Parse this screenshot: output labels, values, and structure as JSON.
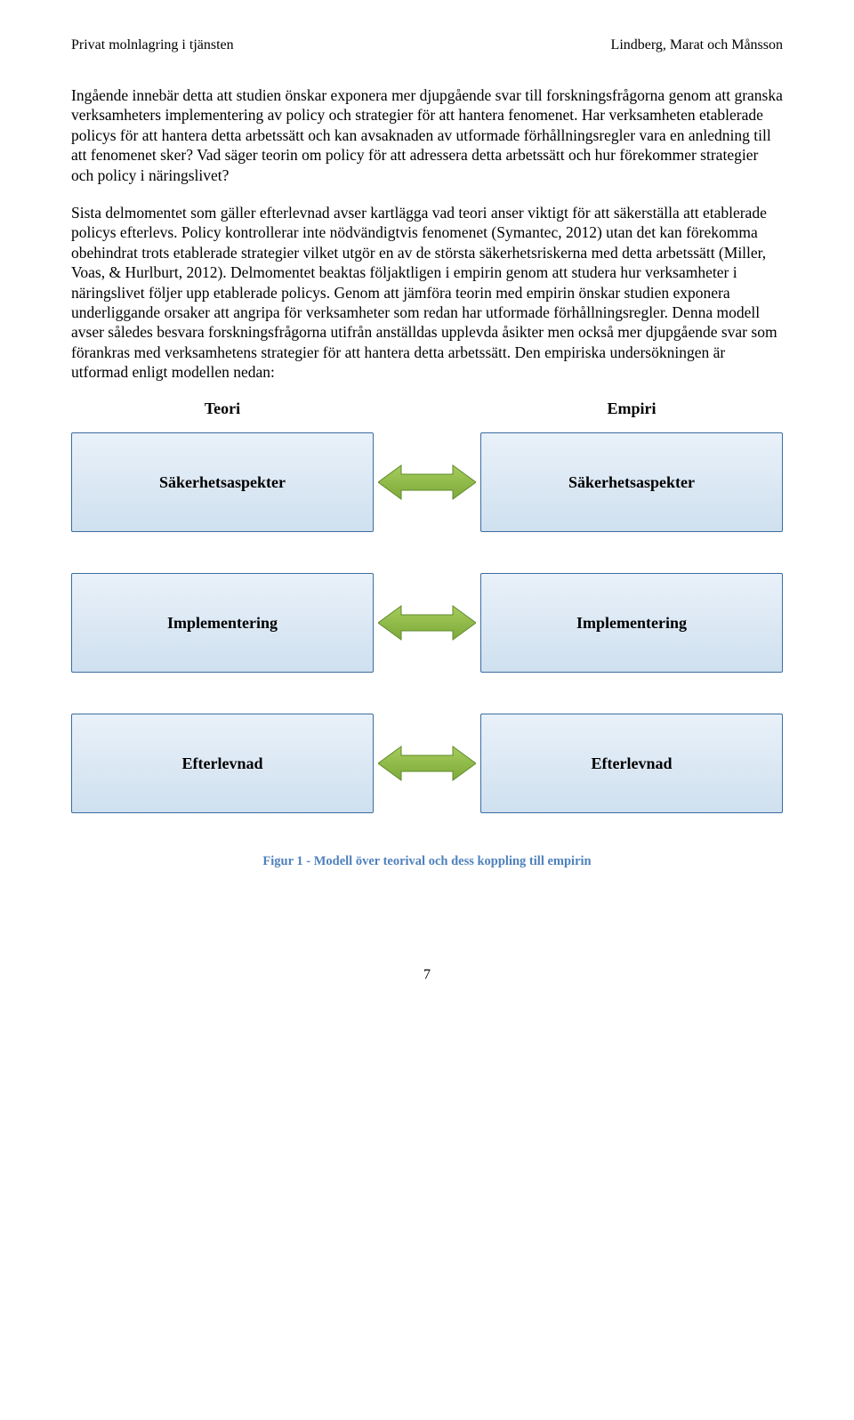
{
  "header": {
    "left": "Privat molnlagring i tjänsten",
    "right": "Lindberg, Marat och Månsson"
  },
  "paragraphs": {
    "p1": "Ingående innebär detta att studien önskar exponera mer djupgående svar till forskningsfrågorna genom att granska verksamheters implementering av policy och strategier för att hantera fenomenet. Har verksamheten etablerade policys för att hantera detta arbetssätt och kan avsaknaden av utformade förhållningsregler vara en anledning till att fenomenet sker? Vad säger teorin om policy för att adressera detta arbetssätt och hur förekommer strategier och policy i näringslivet?",
    "p2": "Sista delmomentet som gäller efterlevnad avser kartlägga vad teori anser viktigt för att säkerställa att etablerade policys efterlevs. Policy kontrollerar inte nödvändigtvis fenomenet (Symantec, 2012) utan det kan förekomma obehindrat trots etablerade strategier vilket utgör en av de största säkerhetsriskerna med detta arbetssätt (Miller, Voas, & Hurlburt, 2012). Delmomentet beaktas följaktligen i empirin genom att studera hur verksamheter i näringslivet följer upp etablerade policys. Genom att jämföra teorin med empirin önskar studien exponera underliggande orsaker att angripa för verksamheter som redan har utformade förhållningsregler. Denna modell avser således besvara forskningsfrågorna utifrån anställdas upplevda åsikter men också mer djupgående svar som förankras med verksamhetens strategier för att hantera detta arbetssätt. Den empiriska undersökningen är utformad enligt modellen nedan:"
  },
  "diagram": {
    "columns": {
      "left": "Teori",
      "right": "Empiri"
    },
    "rows": [
      {
        "left": "Säkerhetsaspekter",
        "right": "Säkerhetsaspekter"
      },
      {
        "left": "Implementering",
        "right": "Implementering"
      },
      {
        "left": "Efterlevnad",
        "right": "Efterlevnad"
      }
    ],
    "box_style": {
      "fill_top": "#e9f1f9",
      "fill_bottom": "#cfe0ef",
      "border_color": "#3b6da0"
    },
    "arrow_style": {
      "fill_top": "#a5cc5c",
      "fill_bottom": "#7daa3a",
      "stroke": "#5f8a2b"
    }
  },
  "caption": {
    "text": "Figur 1 - Modell över teorival och dess koppling till empirin",
    "color": "#4f81bd"
  },
  "page_number": "7"
}
